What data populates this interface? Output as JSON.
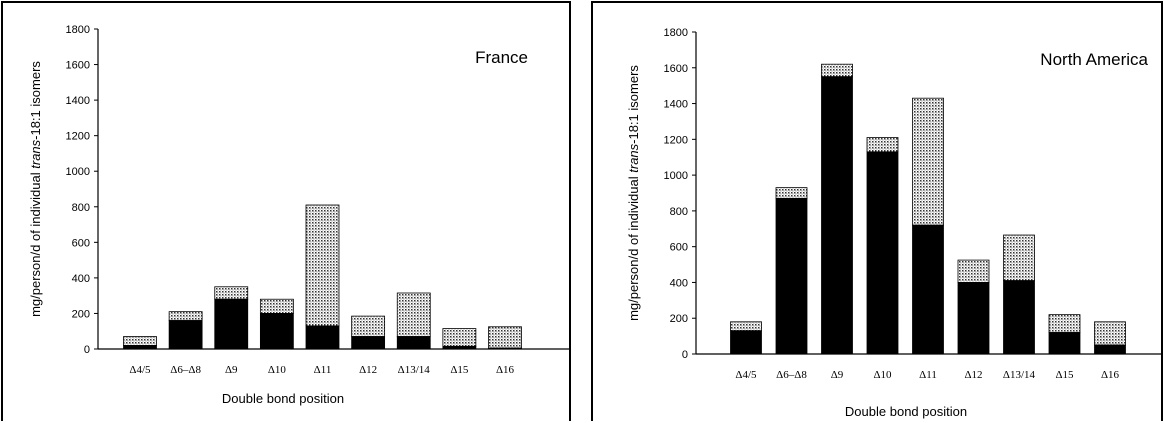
{
  "chart_data": [
    {
      "type": "bar",
      "stacked": true,
      "title": "France",
      "xlabel": "Double bond position",
      "ylabel_pre": "mg/person/d of individual ",
      "ylabel_italic": "trans",
      "ylabel_post": "-18:1 isomers",
      "ylim": [
        0,
        1800
      ],
      "yticks": [
        0,
        200,
        400,
        600,
        800,
        1000,
        1200,
        1400,
        1600,
        1800
      ],
      "categories": [
        "Δ4/5",
        "Δ6–Δ8",
        "Δ9",
        "Δ10",
        "Δ11",
        "Δ12",
        "Δ13/14",
        "Δ15",
        "Δ16"
      ],
      "series": [
        {
          "pattern": "solid",
          "values": [
            20,
            160,
            280,
            200,
            130,
            70,
            70,
            15,
            5
          ]
        },
        {
          "pattern": "dotted",
          "values": [
            50,
            50,
            70,
            80,
            680,
            115,
            245,
            100,
            120
          ]
        }
      ],
      "totals": [
        70,
        210,
        350,
        280,
        810,
        185,
        315,
        115,
        125
      ],
      "grid": false
    },
    {
      "type": "bar",
      "stacked": true,
      "title": "North America",
      "xlabel": "Double bond position",
      "ylabel_pre": "mg/person/d of individual ",
      "ylabel_italic": "trans",
      "ylabel_post": "-18:1 isomers",
      "ylim": [
        0,
        1800
      ],
      "yticks": [
        0,
        200,
        400,
        600,
        800,
        1000,
        1200,
        1400,
        1600,
        1800
      ],
      "categories": [
        "Δ4/5",
        "Δ6–Δ8",
        "Δ9",
        "Δ10",
        "Δ11",
        "Δ12",
        "Δ13/14",
        "Δ15",
        "Δ16"
      ],
      "series": [
        {
          "pattern": "solid",
          "values": [
            130,
            870,
            1550,
            1130,
            720,
            400,
            410,
            120,
            50
          ]
        },
        {
          "pattern": "dotted",
          "values": [
            50,
            60,
            70,
            80,
            710,
            125,
            255,
            100,
            130
          ]
        }
      ],
      "totals": [
        180,
        930,
        1620,
        1210,
        1430,
        525,
        665,
        220,
        180
      ],
      "grid": false
    }
  ],
  "colors": {
    "bar_fill": "#000000",
    "dot_fill": "#b8b8b8",
    "axis": "#000000"
  }
}
